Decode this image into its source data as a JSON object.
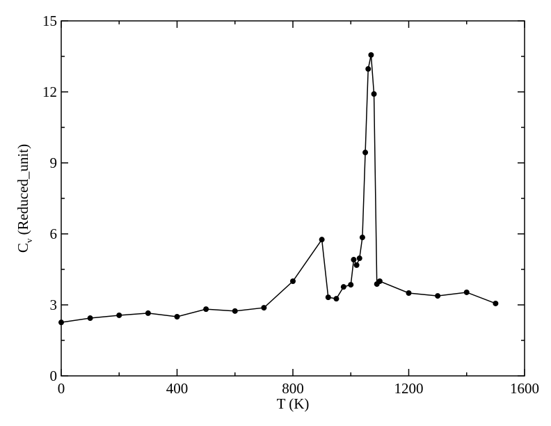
{
  "chart_data": {
    "type": "line",
    "x_label": "T (K)",
    "y_label": {
      "main": "C",
      "sub": "v",
      "rest": "(Reduced_unit)"
    },
    "x": [
      0,
      100,
      200,
      300,
      400,
      500,
      600,
      700,
      800,
      900,
      922,
      950,
      975,
      1000,
      1010,
      1020,
      1030,
      1040,
      1050,
      1060,
      1070,
      1080,
      1090,
      1100,
      1200,
      1300,
      1400,
      1500
    ],
    "series": [
      {
        "color": "#000000",
        "values": [
          2.26,
          2.44,
          2.56,
          2.65,
          2.5,
          2.82,
          2.74,
          2.88,
          4.0,
          5.76,
          3.32,
          3.26,
          3.76,
          3.85,
          4.91,
          4.68,
          4.97,
          5.85,
          9.44,
          12.97,
          13.56,
          11.91,
          3.88,
          4.0,
          3.5,
          3.38,
          3.53,
          3.06
        ]
      }
    ],
    "xlim": [
      0,
      1600
    ],
    "xticks": [
      0,
      400,
      800,
      1200,
      1600
    ],
    "xminorticks": [
      200,
      600,
      1000,
      1400
    ],
    "ylim": [
      0,
      15
    ],
    "yticks": [
      0,
      3,
      6,
      9,
      12,
      15
    ],
    "yminorticks": [
      1.5,
      4.5,
      7.5,
      10.5,
      13.5
    ]
  }
}
